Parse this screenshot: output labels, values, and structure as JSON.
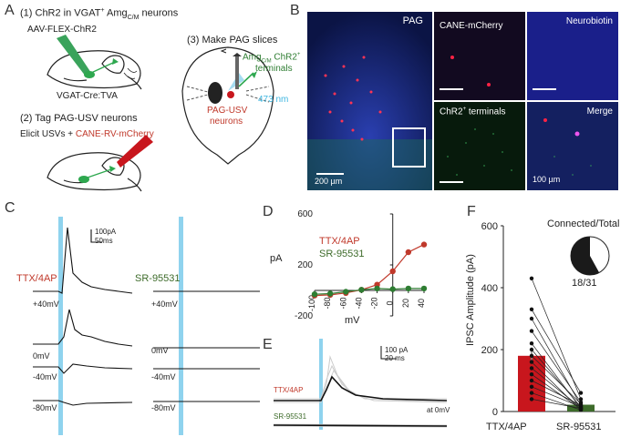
{
  "panel_a": {
    "letter": "A",
    "step1": "(1) ChR2 in VGAT",
    "step1_sup": "+",
    "step1_tail": " Amg",
    "step1_sub": "C/M",
    "step1_end": " neurons",
    "virus": "AAV-FLEX-ChR2",
    "mouse_line": "VGAT-Cre:TVA",
    "step2": "(2) Tag PAG-USV neurons",
    "elicit": "Elicit USVs + ",
    "cane": "CANE-RV-mCherry",
    "step3": "(3) Make PAG slices",
    "amg_label": "Amg",
    "amg_sub": "C/M",
    "amg_tail": " ChR2",
    "amg_sup": "+",
    "terminals": "terminals",
    "wavelength": "473 nm",
    "pag_usv": "PAG-USV",
    "neurons": "neurons"
  },
  "panel_b": {
    "letter": "B",
    "pag": "PAG",
    "cane_mcherry": "CANE-mCherry",
    "neurobiotin": "Neurobiotin",
    "chr2_terminals": "ChR2",
    "chr2_sup": "+",
    "chr2_tail": " terminals",
    "merge": "Merge",
    "scale1": "200 µm",
    "scale2": "100 µm"
  },
  "panel_c": {
    "letter": "C",
    "scale_pa": "100pA",
    "scale_ms": "50ms",
    "cond1": "TTX/4AP",
    "cond2": "SR-95531",
    "v_left": [
      "+40mV",
      "0mV",
      "-40mV",
      "-80mV"
    ],
    "v_right": [
      "+40mV",
      "0mV",
      "-40mV",
      "-80mV"
    ]
  },
  "panel_d": {
    "letter": "D",
    "legend1": "TTX/4AP",
    "legend2": "SR-95531",
    "ylabel": "pA",
    "xlabel": "mV",
    "y_ticks": [
      "600",
      "200",
      "-200"
    ],
    "x_ticks": [
      "-100",
      "-80",
      "-60",
      "-40",
      "-20",
      "0",
      "20",
      "40"
    ]
  },
  "panel_e": {
    "letter": "E",
    "scale_pa": "100 pA",
    "scale_ms": "20 ms",
    "cond1": "TTX/4AP",
    "cond2": "SR-95531",
    "hold": "at 0mV"
  },
  "panel_f": {
    "letter": "F",
    "ylabel": "IPSC Amplitude (pA)",
    "y_ticks": [
      "0",
      "200",
      "400",
      "600"
    ],
    "categories": [
      "TTX/4AP",
      "SR-95531"
    ],
    "pie_title": "Connected/Total",
    "pie_label": "18/31"
  },
  "colors": {
    "red": "#c0392b",
    "green": "#2e7d32",
    "stim": "#8fd3ee",
    "bar_red": "#c8161d",
    "bar_green": "#3d6b2a"
  },
  "chart_data": [
    {
      "type": "line",
      "xlabel": "mV",
      "ylabel": "pA",
      "xlim": [
        -100,
        40
      ],
      "ylim": [
        -200,
        600
      ],
      "series": [
        {
          "name": "TTX/4AP",
          "x": [
            -100,
            -80,
            -60,
            -40,
            -20,
            0,
            20,
            40
          ],
          "values": [
            -40,
            -35,
            -20,
            5,
            45,
            150,
            300,
            360
          ]
        },
        {
          "name": "SR-95531",
          "x": [
            -100,
            -80,
            -60,
            -40,
            -20,
            0,
            20,
            40
          ],
          "values": [
            -30,
            -25,
            -10,
            5,
            15,
            10,
            15,
            15
          ]
        }
      ]
    },
    {
      "type": "bar",
      "ylabel": "IPSC Amplitude (pA)",
      "ylim": [
        0,
        600
      ],
      "categories": [
        "TTX/4AP",
        "SR-95531"
      ],
      "values": [
        180,
        22
      ],
      "errors": [
        20,
        5
      ],
      "pie": {
        "label": "18/31",
        "fraction": 0.58
      }
    }
  ]
}
